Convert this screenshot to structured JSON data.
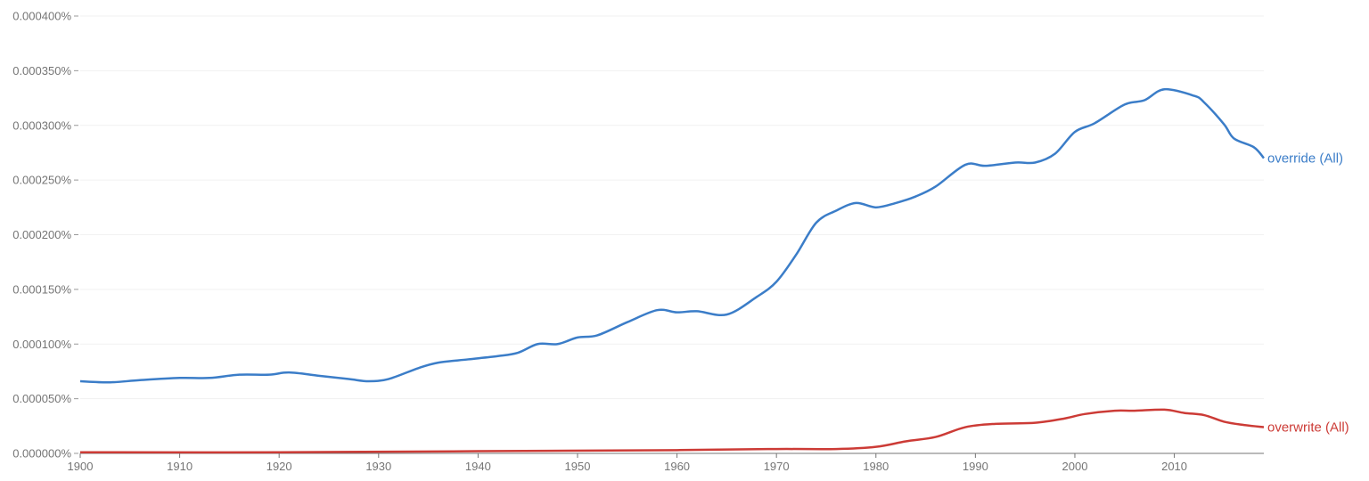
{
  "chart_data": {
    "type": "line",
    "title": "",
    "xlabel": "",
    "ylabel": "",
    "xlim": [
      1900,
      2019
    ],
    "ylim": [
      0,
      0.0004
    ],
    "grid": true,
    "legend": "inline-right",
    "x_ticks": [
      "1900",
      "1910",
      "1920",
      "1930",
      "1940",
      "1950",
      "1960",
      "1970",
      "1980",
      "1990",
      "2000",
      "2010"
    ],
    "y_ticks": [
      "0.000000%",
      "0.000050%",
      "0.000100%",
      "0.000150%",
      "0.000200%",
      "0.000250%",
      "0.000300%",
      "0.000350%",
      "0.000400%"
    ],
    "series": [
      {
        "name": "override (All)",
        "color": "#3b7dc8",
        "points": [
          [
            1900,
            6.6e-05
          ],
          [
            1903,
            6.5e-05
          ],
          [
            1906,
            6.7e-05
          ],
          [
            1910,
            6.9e-05
          ],
          [
            1913,
            6.9e-05
          ],
          [
            1916,
            7.2e-05
          ],
          [
            1919,
            7.2e-05
          ],
          [
            1921,
            7.4e-05
          ],
          [
            1924,
            7.1e-05
          ],
          [
            1927,
            6.8e-05
          ],
          [
            1929,
            6.6e-05
          ],
          [
            1931,
            6.8e-05
          ],
          [
            1934,
            7.8e-05
          ],
          [
            1936,
            8.3e-05
          ],
          [
            1939,
            8.6e-05
          ],
          [
            1942,
            8.9e-05
          ],
          [
            1944,
            9.2e-05
          ],
          [
            1946,
            0.0001
          ],
          [
            1948,
            0.0001
          ],
          [
            1950,
            0.000106
          ],
          [
            1952,
            0.000108
          ],
          [
            1955,
            0.00012
          ],
          [
            1958,
            0.000131
          ],
          [
            1960,
            0.000129
          ],
          [
            1962,
            0.00013
          ],
          [
            1965,
            0.000127
          ],
          [
            1968,
            0.000143
          ],
          [
            1970,
            0.000157
          ],
          [
            1972,
            0.000182
          ],
          [
            1974,
            0.000211
          ],
          [
            1976,
            0.000222
          ],
          [
            1978,
            0.000229
          ],
          [
            1980,
            0.000225
          ],
          [
            1982,
            0.000229
          ],
          [
            1984,
            0.000235
          ],
          [
            1986,
            0.000244
          ],
          [
            1989,
            0.000264
          ],
          [
            1991,
            0.000263
          ],
          [
            1994,
            0.000266
          ],
          [
            1996,
            0.000266
          ],
          [
            1998,
            0.000274
          ],
          [
            2000,
            0.000294
          ],
          [
            2002,
            0.000302
          ],
          [
            2005,
            0.000319
          ],
          [
            2007,
            0.000323
          ],
          [
            2009,
            0.000333
          ],
          [
            2012,
            0.000327
          ],
          [
            2013,
            0.000321
          ],
          [
            2015,
            0.000301
          ],
          [
            2016,
            0.000288
          ],
          [
            2018,
            0.00028
          ],
          [
            2019,
            0.00027
          ]
        ]
      },
      {
        "name": "overwrite (All)",
        "color": "#cc3b36",
        "points": [
          [
            1900,
            1e-06
          ],
          [
            1920,
            1e-06
          ],
          [
            1940,
            2e-06
          ],
          [
            1960,
            3e-06
          ],
          [
            1970,
            4e-06
          ],
          [
            1976,
            4e-06
          ],
          [
            1980,
            6e-06
          ],
          [
            1983,
            1.1e-05
          ],
          [
            1986,
            1.5e-05
          ],
          [
            1989,
            2.4e-05
          ],
          [
            1992,
            2.7e-05
          ],
          [
            1996,
            2.8e-05
          ],
          [
            1999,
            3.2e-05
          ],
          [
            2001,
            3.6e-05
          ],
          [
            2004,
            3.9e-05
          ],
          [
            2006,
            3.9e-05
          ],
          [
            2009,
            4e-05
          ],
          [
            2011,
            3.7e-05
          ],
          [
            2013,
            3.5e-05
          ],
          [
            2015,
            2.9e-05
          ],
          [
            2017,
            2.6e-05
          ],
          [
            2019,
            2.4e-05
          ]
        ]
      }
    ]
  }
}
